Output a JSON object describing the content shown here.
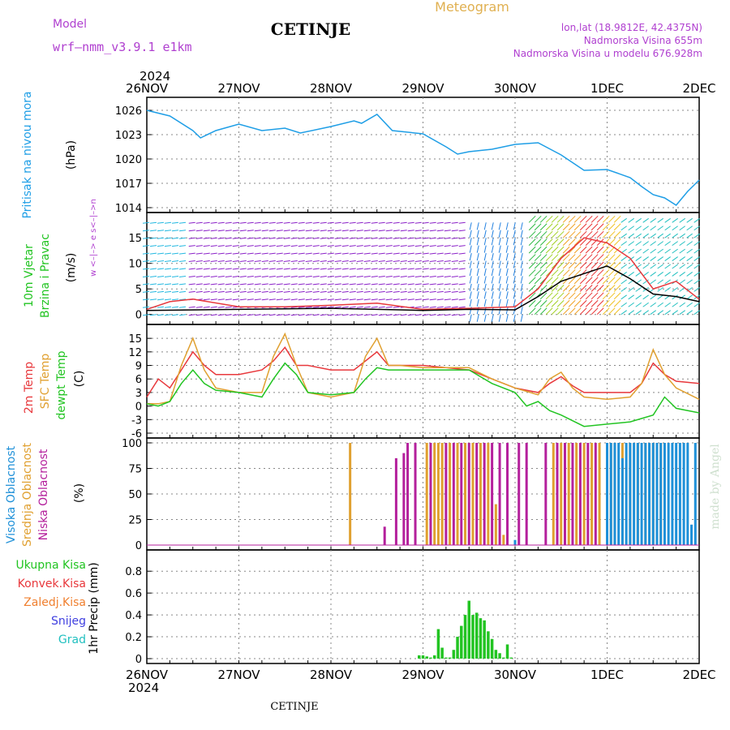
{
  "header": {
    "model_label": "Model",
    "model_name": "wrf–nmm_v3.9.1 e1km",
    "station": "CETINJE",
    "product": "Meteogram",
    "lonlat": "lon,lat (18.9812E, 42.4375N)",
    "elevation": "Nadmorska Visina 655m",
    "model_elevation": "Nadmorska Visina u modelu 676.928m",
    "footer_station": "CETINJE",
    "credit": "made by Angel",
    "year": "2024"
  },
  "colors": {
    "pressure": "#1e9ee6",
    "temp2m": "#e8383c",
    "sfc": "#e0a030",
    "dew": "#22c422",
    "high_cloud": "#1e90d8",
    "mid_cloud": "#e0a030",
    "low_cloud": "#b4209c",
    "total_precip": "#22c422",
    "conv_precip": "#e8383c",
    "frozen_precip": "#f08030",
    "snow": "#4040e0",
    "graupel": "#22c0c0",
    "wind_label": "#22c422",
    "wind_dir": "#b040d0",
    "grid": "#888888"
  },
  "chart_data": [
    {
      "type": "line",
      "panel": "pressure",
      "ylabel_lines": [
        "Pritisak na nivou mora"
      ],
      "unit": "(hPa)",
      "ylim": [
        1014,
        1027
      ],
      "yticks": [
        1014,
        1017,
        1020,
        1023,
        1026
      ],
      "xlim": [
        "2024-11-26 00:00",
        "2024-12-02 00:00"
      ],
      "x_ticks": [
        "26NOV",
        "27NOV",
        "28NOV",
        "29NOV",
        "30NOV",
        "1DEC",
        "2DEC"
      ],
      "grid": true,
      "series": [
        {
          "color": "#1e9ee6",
          "x": [
            "2024-11-26 00:00",
            "2024-11-26 06:00",
            "2024-11-26 12:00",
            "2024-11-26 14:00",
            "2024-11-26 18:00",
            "2024-11-27 00:00",
            "2024-11-27 06:00",
            "2024-11-27 12:00",
            "2024-11-27 16:00",
            "2024-11-28 00:00",
            "2024-11-28 06:00",
            "2024-11-28 08:00",
            "2024-11-28 12:00",
            "2024-11-28 16:00",
            "2024-11-29 00:00",
            "2024-11-29 06:00",
            "2024-11-29 09:00",
            "2024-11-29 12:00",
            "2024-11-29 18:00",
            "2024-11-30 00:00",
            "2024-11-30 06:00",
            "2024-11-30 12:00",
            "2024-11-30 18:00",
            "2024-12-01 00:00",
            "2024-12-01 06:00",
            "2024-12-01 09:00",
            "2024-12-01 12:00",
            "2024-12-01 15:00",
            "2024-12-01 18:00",
            "2024-12-01 21:00",
            "2024-12-02 00:00"
          ],
          "y": [
            1026.0,
            1025.3,
            1023.5,
            1022.6,
            1023.5,
            1024.3,
            1023.5,
            1023.8,
            1023.2,
            1024.0,
            1024.7,
            1024.4,
            1025.5,
            1023.5,
            1023.1,
            1021.5,
            1020.6,
            1020.9,
            1021.2,
            1021.8,
            1022.0,
            1020.5,
            1018.6,
            1018.7,
            1017.7,
            1016.6,
            1015.6,
            1015.2,
            1014.3,
            1016.0,
            1017.4
          ]
        }
      ]
    },
    {
      "type": "line",
      "panel": "wind",
      "ylabel_lines": [
        "10m Vjetar",
        "Brzina i Pravac"
      ],
      "unit": "(m/s)",
      "direction_key": "w <–|–> e  s<–|–>n",
      "ylim": [
        -1,
        19
      ],
      "yticks": [
        0,
        5,
        10,
        15
      ],
      "xlim": [
        "2024-11-26 00:00",
        "2024-12-02 00:00"
      ],
      "grid": true,
      "wind_regimes": [
        {
          "x": [
            "2024-11-26 00:00",
            "2024-11-26 12:00"
          ],
          "arrow_color": "#22b8e0"
        },
        {
          "x": [
            "2024-11-26 12:00",
            "2024-11-29 12:00"
          ],
          "arrow_color": "#8a20c8"
        },
        {
          "x": [
            "2024-11-29 12:00",
            "2024-11-30 03:00"
          ],
          "arrow_color": "#2080e0"
        },
        {
          "x": [
            "2024-11-30 03:00",
            "2024-12-01 03:00"
          ],
          "arrow_color": "#e83030"
        },
        {
          "x": [
            "2024-12-01 03:00",
            "2024-12-02 00:00"
          ],
          "arrow_color": "#22c0c0"
        }
      ],
      "series": [
        {
          "color": "#e8383c",
          "x": [
            "2024-11-26 00:00",
            "2024-11-26 06:00",
            "2024-11-26 12:00",
            "2024-11-27 00:00",
            "2024-11-27 12:00",
            "2024-11-28 00:00",
            "2024-11-28 12:00",
            "2024-11-29 00:00",
            "2024-11-29 12:00",
            "2024-11-30 00:00",
            "2024-11-30 06:00",
            "2024-11-30 12:00",
            "2024-11-30 18:00",
            "2024-12-01 00:00",
            "2024-12-01 06:00",
            "2024-12-01 12:00",
            "2024-12-01 18:00",
            "2024-12-02 00:00"
          ],
          "y": [
            1.0,
            2.5,
            3.0,
            1.5,
            1.5,
            1.8,
            2.2,
            1.0,
            1.2,
            1.5,
            5.0,
            11.0,
            15.0,
            14.0,
            11.0,
            5.0,
            6.5,
            3.0
          ]
        },
        {
          "color": "#000000",
          "x": [
            "2024-11-26 00:00",
            "2024-11-27 00:00",
            "2024-11-28 00:00",
            "2024-11-29 00:00",
            "2024-11-29 12:00",
            "2024-11-30 00:00",
            "2024-11-30 06:00",
            "2024-11-30 12:00",
            "2024-11-30 18:00",
            "2024-12-01 00:00",
            "2024-12-01 06:00",
            "2024-12-01 12:00",
            "2024-12-01 18:00",
            "2024-12-02 00:00"
          ],
          "y": [
            0.8,
            1.0,
            1.2,
            0.8,
            1.0,
            0.9,
            3.5,
            6.5,
            8.0,
            9.5,
            7.0,
            4.0,
            3.5,
            2.5
          ]
        }
      ]
    },
    {
      "type": "line",
      "panel": "temperature",
      "ylabel_lines": [
        "2m Temp",
        "SFC Temp",
        "dewpt Temp"
      ],
      "unit": "(C)",
      "ylim": [
        -6,
        17
      ],
      "yticks": [
        -6,
        -3,
        0,
        3,
        6,
        9,
        12,
        15
      ],
      "xlim": [
        "2024-11-26 00:00",
        "2024-12-02 00:00"
      ],
      "grid": true,
      "series": [
        {
          "name": "2m Temp",
          "color": "#e8383c",
          "x": [
            "2024-11-26 00:00",
            "2024-11-26 03:00",
            "2024-11-26 06:00",
            "2024-11-26 09:00",
            "2024-11-26 12:00",
            "2024-11-26 15:00",
            "2024-11-26 18:00",
            "2024-11-27 00:00",
            "2024-11-27 06:00",
            "2024-11-27 09:00",
            "2024-11-27 12:00",
            "2024-11-27 15:00",
            "2024-11-27 18:00",
            "2024-11-28 00:00",
            "2024-11-28 06:00",
            "2024-11-28 09:00",
            "2024-11-28 12:00",
            "2024-11-28 15:00",
            "2024-11-28 18:00",
            "2024-11-29 00:00",
            "2024-11-29 06:00",
            "2024-11-29 12:00",
            "2024-11-29 18:00",
            "2024-11-30 00:00",
            "2024-11-30 06:00",
            "2024-11-30 09:00",
            "2024-11-30 12:00",
            "2024-11-30 15:00",
            "2024-11-30 18:00",
            "2024-12-01 00:00",
            "2024-12-01 06:00",
            "2024-12-01 09:00",
            "2024-12-01 12:00",
            "2024-12-01 15:00",
            "2024-12-01 18:00",
            "2024-12-02 00:00"
          ],
          "y": [
            2,
            6,
            4,
            8,
            12,
            9,
            7,
            7,
            8,
            10,
            13,
            9,
            9,
            8,
            8,
            10,
            12,
            9,
            9,
            9,
            8.5,
            8,
            6,
            4,
            3,
            5,
            6.5,
            4.5,
            3,
            3,
            3,
            5,
            9.5,
            7,
            5.5,
            5
          ]
        },
        {
          "name": "SFC Temp",
          "color": "#e0a030",
          "x": [
            "2024-11-26 00:00",
            "2024-11-26 03:00",
            "2024-11-26 06:00",
            "2024-11-26 09:00",
            "2024-11-26 12:00",
            "2024-11-26 15:00",
            "2024-11-26 18:00",
            "2024-11-27 00:00",
            "2024-11-27 06:00",
            "2024-11-27 09:00",
            "2024-11-27 12:00",
            "2024-11-27 15:00",
            "2024-11-27 18:00",
            "2024-11-28 00:00",
            "2024-11-28 06:00",
            "2024-11-28 09:00",
            "2024-11-28 12:00",
            "2024-11-28 15:00",
            "2024-11-28 18:00",
            "2024-11-29 00:00",
            "2024-11-29 06:00",
            "2024-11-29 12:00",
            "2024-11-29 18:00",
            "2024-11-30 00:00",
            "2024-11-30 06:00",
            "2024-11-30 09:00",
            "2024-11-30 12:00",
            "2024-11-30 15:00",
            "2024-11-30 18:00",
            "2024-12-01 00:00",
            "2024-12-01 06:00",
            "2024-12-01 09:00",
            "2024-12-01 12:00",
            "2024-12-01 15:00",
            "2024-12-01 18:00",
            "2024-12-02 00:00"
          ],
          "y": [
            0.5,
            0.5,
            1,
            9,
            15,
            8,
            4,
            3,
            3,
            11,
            16,
            9,
            3,
            2,
            3,
            11,
            15,
            9,
            9,
            8.5,
            8.5,
            8.5,
            6,
            4,
            2.5,
            6,
            7.5,
            4,
            2,
            1.5,
            2,
            5,
            12.5,
            7,
            4,
            1.5
          ]
        },
        {
          "name": "dewpt Temp",
          "color": "#22c422",
          "x": [
            "2024-11-26 00:00",
            "2024-11-26 03:00",
            "2024-11-26 06:00",
            "2024-11-26 09:00",
            "2024-11-26 12:00",
            "2024-11-26 15:00",
            "2024-11-26 18:00",
            "2024-11-27 00:00",
            "2024-11-27 06:00",
            "2024-11-27 09:00",
            "2024-11-27 12:00",
            "2024-11-27 15:00",
            "2024-11-27 18:00",
            "2024-11-28 00:00",
            "2024-11-28 06:00",
            "2024-11-28 09:00",
            "2024-11-28 12:00",
            "2024-11-28 15:00",
            "2024-11-28 18:00",
            "2024-11-29 00:00",
            "2024-11-29 06:00",
            "2024-11-29 12:00",
            "2024-11-29 18:00",
            "2024-11-30 00:00",
            "2024-11-30 03:00",
            "2024-11-30 06:00",
            "2024-11-30 09:00",
            "2024-11-30 12:00",
            "2024-11-30 18:00",
            "2024-12-01 00:00",
            "2024-12-01 06:00",
            "2024-12-01 12:00",
            "2024-12-01 15:00",
            "2024-12-01 18:00",
            "2024-12-02 00:00"
          ],
          "y": [
            0.5,
            0,
            1,
            5,
            8,
            5,
            3.5,
            3,
            2,
            6,
            9.5,
            7,
            3,
            2.5,
            3,
            6,
            8.5,
            8,
            8,
            8,
            8,
            8,
            5,
            3,
            0,
            1,
            -1,
            -2,
            -4.5,
            -4,
            -3.5,
            -2,
            2,
            -0.5,
            -1.5
          ]
        }
      ]
    },
    {
      "type": "bar",
      "panel": "cloud",
      "ylabel_lines": [
        "Visoka Oblacnost",
        "Srednja Oblacnost",
        "Niska Oblacnost"
      ],
      "unit": "(%)",
      "ylim": [
        0,
        100
      ],
      "yticks": [
        0,
        25,
        50,
        75,
        100
      ],
      "xlim": [
        "2024-11-26 00:00",
        "2024-12-02 00:00"
      ],
      "grid": true,
      "series": [
        {
          "name": "Niska Oblacnost",
          "color": "#b4209c",
          "x": [
            "2024-11-28 14:00",
            "2024-11-28 17:00",
            "2024-11-28 19:00",
            "2024-11-28 20:00",
            "2024-11-28 22:00",
            "2024-11-29 02:00",
            "2024-11-29 06:00",
            "2024-11-29 08:00",
            "2024-11-29 10:00",
            "2024-11-29 12:00",
            "2024-11-29 14:00",
            "2024-11-29 16:00",
            "2024-11-29 18:00",
            "2024-11-29 20:00",
            "2024-11-29 22:00",
            "2024-11-30 01:00",
            "2024-11-30 03:00",
            "2024-11-30 08:00",
            "2024-11-30 11:00",
            "2024-11-30 13:00",
            "2024-11-30 15:00",
            "2024-11-30 17:00",
            "2024-11-30 19:00",
            "2024-11-30 21:00"
          ],
          "y": [
            18,
            85,
            90,
            100,
            100,
            100,
            100,
            100,
            100,
            100,
            100,
            100,
            100,
            100,
            100,
            100,
            100,
            100,
            100,
            100,
            100,
            100,
            100,
            100
          ]
        },
        {
          "name": "Srednja Oblacnost",
          "color": "#e0a030",
          "x": [
            "2024-11-28 05:00",
            "2024-11-29 01:00",
            "2024-11-29 03:00",
            "2024-11-29 04:00",
            "2024-11-29 05:00",
            "2024-11-29 07:00",
            "2024-11-29 09:00",
            "2024-11-29 11:00",
            "2024-11-29 13:00",
            "2024-11-29 15:00",
            "2024-11-29 17:00",
            "2024-11-29 19:00",
            "2024-11-29 21:00",
            "2024-11-30 10:00",
            "2024-11-30 12:00",
            "2024-11-30 14:00",
            "2024-11-30 16:00",
            "2024-11-30 18:00",
            "2024-11-30 20:00",
            "2024-11-30 22:00",
            "2024-12-01 00:00",
            "2024-12-01 01:00",
            "2024-12-01 02:00",
            "2024-12-01 04:00",
            "2024-12-01 06:00",
            "2024-12-01 08:00",
            "2024-12-01 10:00",
            "2024-12-01 12:00",
            "2024-12-01 14:00"
          ],
          "y": [
            100,
            100,
            100,
            100,
            100,
            100,
            100,
            100,
            100,
            100,
            100,
            40,
            10,
            100,
            100,
            100,
            100,
            100,
            100,
            100,
            100,
            100,
            100,
            100,
            100,
            100,
            100,
            100,
            100
          ]
        },
        {
          "name": "Visoka Oblacnost",
          "color": "#1e90d8",
          "x": [
            "2024-11-30 00:00",
            "2024-12-01 00:00",
            "2024-12-01 01:00",
            "2024-12-01 02:00",
            "2024-12-01 03:00",
            "2024-12-01 04:00",
            "2024-12-01 05:00",
            "2024-12-01 06:00",
            "2024-12-01 07:00",
            "2024-12-01 08:00",
            "2024-12-01 09:00",
            "2024-12-01 10:00",
            "2024-12-01 11:00",
            "2024-12-01 12:00",
            "2024-12-01 13:00",
            "2024-12-01 14:00",
            "2024-12-01 15:00",
            "2024-12-01 16:00",
            "2024-12-01 17:00",
            "2024-12-01 18:00",
            "2024-12-01 19:00",
            "2024-12-01 20:00",
            "2024-12-01 21:00",
            "2024-12-01 22:00",
            "2024-12-01 23:00"
          ],
          "y": [
            5,
            100,
            100,
            100,
            100,
            85,
            100,
            100,
            100,
            100,
            100,
            100,
            100,
            100,
            100,
            100,
            100,
            100,
            100,
            100,
            100,
            100,
            100,
            20,
            100
          ]
        }
      ]
    },
    {
      "type": "bar",
      "panel": "precipitation",
      "legend": [
        "Ukupna Kisa",
        "Konvek.Kisa",
        "Zaledj.Kisa",
        "Snijeg",
        "Grad"
      ],
      "ylabel": "1hr Precip (mm)",
      "ylim": [
        0,
        0.95
      ],
      "yticks": [
        0,
        0.2,
        0.4,
        0.6,
        0.8
      ],
      "xlim": [
        "2024-11-26 00:00",
        "2024-12-02 00:00"
      ],
      "grid": true,
      "series": [
        {
          "name": "Ukupna Kisa",
          "color": "#22c422",
          "x": [
            "2024-11-28 23:00",
            "2024-11-29 00:00",
            "2024-11-29 01:00",
            "2024-11-29 02:00",
            "2024-11-29 03:00",
            "2024-11-29 04:00",
            "2024-11-29 05:00",
            "2024-11-29 06:00",
            "2024-11-29 07:00",
            "2024-11-29 08:00",
            "2024-11-29 09:00",
            "2024-11-29 10:00",
            "2024-11-29 11:00",
            "2024-11-29 12:00",
            "2024-11-29 13:00",
            "2024-11-29 14:00",
            "2024-11-29 15:00",
            "2024-11-29 16:00",
            "2024-11-29 17:00",
            "2024-11-29 18:00",
            "2024-11-29 19:00",
            "2024-11-29 20:00",
            "2024-11-29 21:00",
            "2024-11-29 22:00",
            "2024-11-29 23:00"
          ],
          "y": [
            0.03,
            0.03,
            0.02,
            0.01,
            0.03,
            0.27,
            0.1,
            0.01,
            0.01,
            0.08,
            0.2,
            0.3,
            0.4,
            0.53,
            0.4,
            0.42,
            0.37,
            0.35,
            0.25,
            0.18,
            0.08,
            0.05,
            0.01,
            0.13,
            0.01
          ]
        }
      ]
    }
  ]
}
